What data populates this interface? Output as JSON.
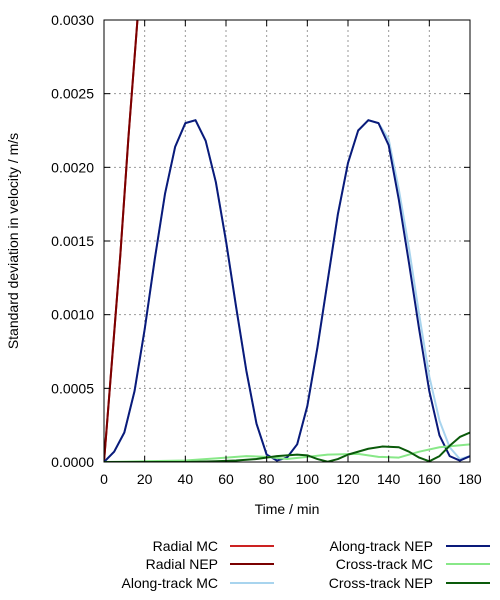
{
  "chart_data": {
    "type": "line",
    "title": "",
    "xlabel": "Time / min",
    "ylabel": "Standard deviation in velocity / m/s",
    "xlim": [
      0,
      180
    ],
    "ylim": [
      0,
      0.003
    ],
    "xticks": [
      0,
      20,
      40,
      60,
      80,
      100,
      120,
      140,
      160,
      180
    ],
    "yticks": [
      0.0,
      0.0005,
      0.001,
      0.0015,
      0.002,
      0.0025,
      0.003
    ],
    "ytick_labels": [
      "0.0000",
      "0.0005",
      "0.0010",
      "0.0015",
      "0.0020",
      "0.0025",
      "0.0030"
    ],
    "grid": true,
    "legend_position": "bottom",
    "series": [
      {
        "name": "Radial MC",
        "color": "#cc2222",
        "x": [
          0,
          4,
          8,
          12,
          17
        ],
        "y": [
          0.0,
          0.0007,
          0.0014,
          0.0022,
          0.0031
        ]
      },
      {
        "name": "Radial NEP",
        "color": "#7a0000",
        "x": [
          0,
          4,
          8,
          12,
          17
        ],
        "y": [
          0.0,
          0.0007,
          0.0014,
          0.0022,
          0.0031
        ]
      },
      {
        "name": "Along-track MC",
        "color": "#a8d4ee",
        "x": [
          0,
          5,
          10,
          15,
          20,
          25,
          30,
          35,
          40,
          45,
          50,
          55,
          60,
          65,
          70,
          75,
          80,
          85,
          90,
          95,
          100,
          105,
          110,
          115,
          120,
          125,
          130,
          135,
          140,
          145,
          150,
          155,
          160,
          165,
          170,
          175,
          180
        ],
        "y": [
          0.0,
          7e-05,
          0.0002,
          0.00048,
          0.0009,
          0.00138,
          0.00182,
          0.00214,
          0.0023,
          0.00232,
          0.00218,
          0.0019,
          0.0015,
          0.00105,
          0.00062,
          0.00026,
          5e-05,
          1e-05,
          3e-05,
          0.00012,
          0.00038,
          0.00078,
          0.00123,
          0.00168,
          0.00203,
          0.00225,
          0.00232,
          0.0023,
          0.00219,
          0.00185,
          0.00145,
          0.001,
          0.00058,
          0.00028,
          0.0001,
          2e-05,
          4e-05
        ]
      },
      {
        "name": "Along-track NEP",
        "color": "#0a1a7a",
        "x": [
          0,
          5,
          10,
          15,
          20,
          25,
          30,
          35,
          40,
          45,
          50,
          55,
          60,
          65,
          70,
          75,
          80,
          85,
          90,
          95,
          100,
          105,
          110,
          115,
          120,
          125,
          130,
          135,
          140,
          145,
          150,
          155,
          160,
          165,
          170,
          175,
          180
        ],
        "y": [
          0.0,
          7e-05,
          0.0002,
          0.00048,
          0.0009,
          0.00138,
          0.00182,
          0.00214,
          0.0023,
          0.00232,
          0.00218,
          0.0019,
          0.0015,
          0.00105,
          0.00062,
          0.00026,
          5e-05,
          1e-05,
          3e-05,
          0.00012,
          0.00038,
          0.00078,
          0.00123,
          0.00168,
          0.00203,
          0.00225,
          0.00232,
          0.0023,
          0.00215,
          0.00178,
          0.00135,
          0.0009,
          0.00048,
          0.00018,
          4e-05,
          1e-05,
          4e-05
        ]
      },
      {
        "name": "Cross-track MC",
        "color": "#88e888",
        "x": [
          0,
          20,
          40,
          55,
          70,
          80,
          90,
          100,
          110,
          125,
          135,
          145,
          155,
          165,
          180
        ],
        "y": [
          0.0,
          5e-06,
          1e-05,
          2.5e-05,
          4e-05,
          3.5e-05,
          2e-05,
          3.5e-05,
          5e-05,
          5.5e-05,
          3.5e-05,
          3e-05,
          7e-05,
          0.0001,
          0.00012
        ]
      },
      {
        "name": "Cross-track NEP",
        "color": "#0a5a0a",
        "x": [
          0,
          20,
          40,
          55,
          65,
          75,
          85,
          95,
          100,
          105,
          110,
          115,
          120,
          130,
          137,
          145,
          150,
          155,
          160,
          165,
          170,
          175,
          180
        ],
        "y": [
          0.0,
          0.0,
          0.0,
          5e-06,
          1e-05,
          2e-05,
          4e-05,
          5e-05,
          4.5e-05,
          2e-05,
          2e-06,
          2e-05,
          5e-05,
          9e-05,
          0.000105,
          0.0001,
          7e-05,
          3e-05,
          5e-06,
          4e-05,
          0.00011,
          0.00017,
          0.0002
        ]
      }
    ]
  }
}
